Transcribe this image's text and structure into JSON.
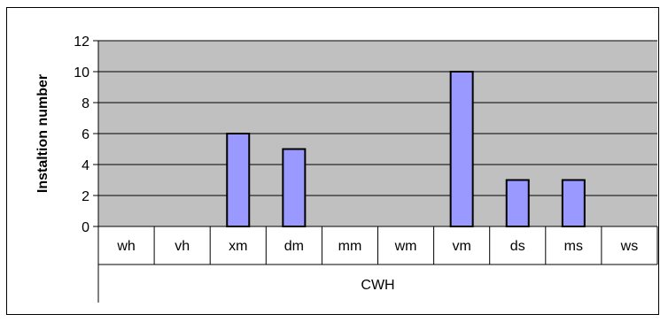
{
  "chart_data": {
    "type": "bar",
    "categories": [
      "wh",
      "vh",
      "xm",
      "dm",
      "mm",
      "wm",
      "vm",
      "ds",
      "ms",
      "ws"
    ],
    "group_label": "CWH",
    "series": [
      {
        "values": [
          0,
          0,
          6,
          5,
          0,
          0,
          10,
          3,
          3,
          0
        ]
      }
    ],
    "ylabel": "Instaltion number",
    "xlabel": "",
    "ylim": [
      0,
      12
    ],
    "yticks": [
      0,
      2,
      4,
      6,
      8,
      10,
      12
    ],
    "grid": true,
    "colors": {
      "plot_background": "#c0c0c0",
      "bar_fill": "#9999ff",
      "bar_stroke": "#000000",
      "gridline": "#000000"
    }
  }
}
